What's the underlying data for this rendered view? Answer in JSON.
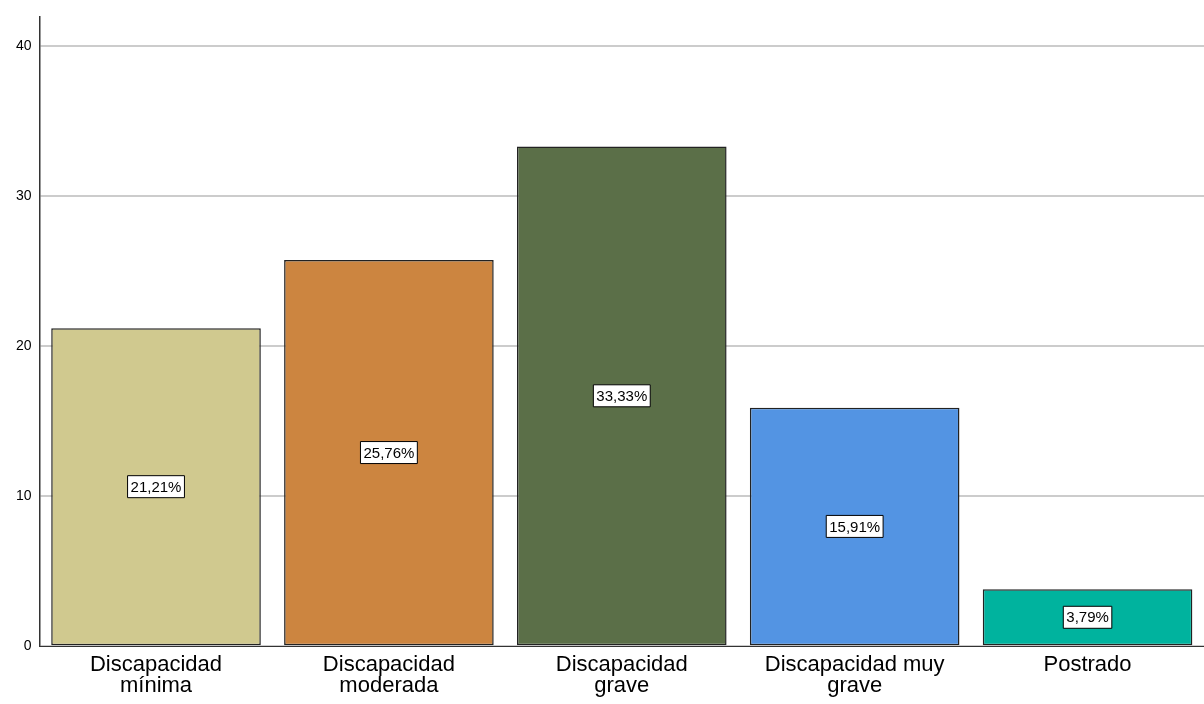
{
  "chart_data": {
    "type": "bar",
    "categories": [
      "Discapacidad mínima",
      "Discapacidad moderada",
      "Discapacidad grave",
      "Discapacidad muy grave",
      "Postrado"
    ],
    "values": [
      21.21,
      25.76,
      33.33,
      15.91,
      3.79
    ],
    "colors": [
      "#d0c98f",
      "#cc8540",
      "#5b6f48",
      "#5394e3",
      "#00b39e"
    ],
    "value_labels": [
      "21,21%",
      "25,76%",
      "33,33%",
      "15,91%",
      "3,79%"
    ],
    "ylim": [
      0,
      42
    ],
    "yticks": [
      0,
      10,
      20,
      30,
      40
    ],
    "grid": "y",
    "legend": false
  }
}
